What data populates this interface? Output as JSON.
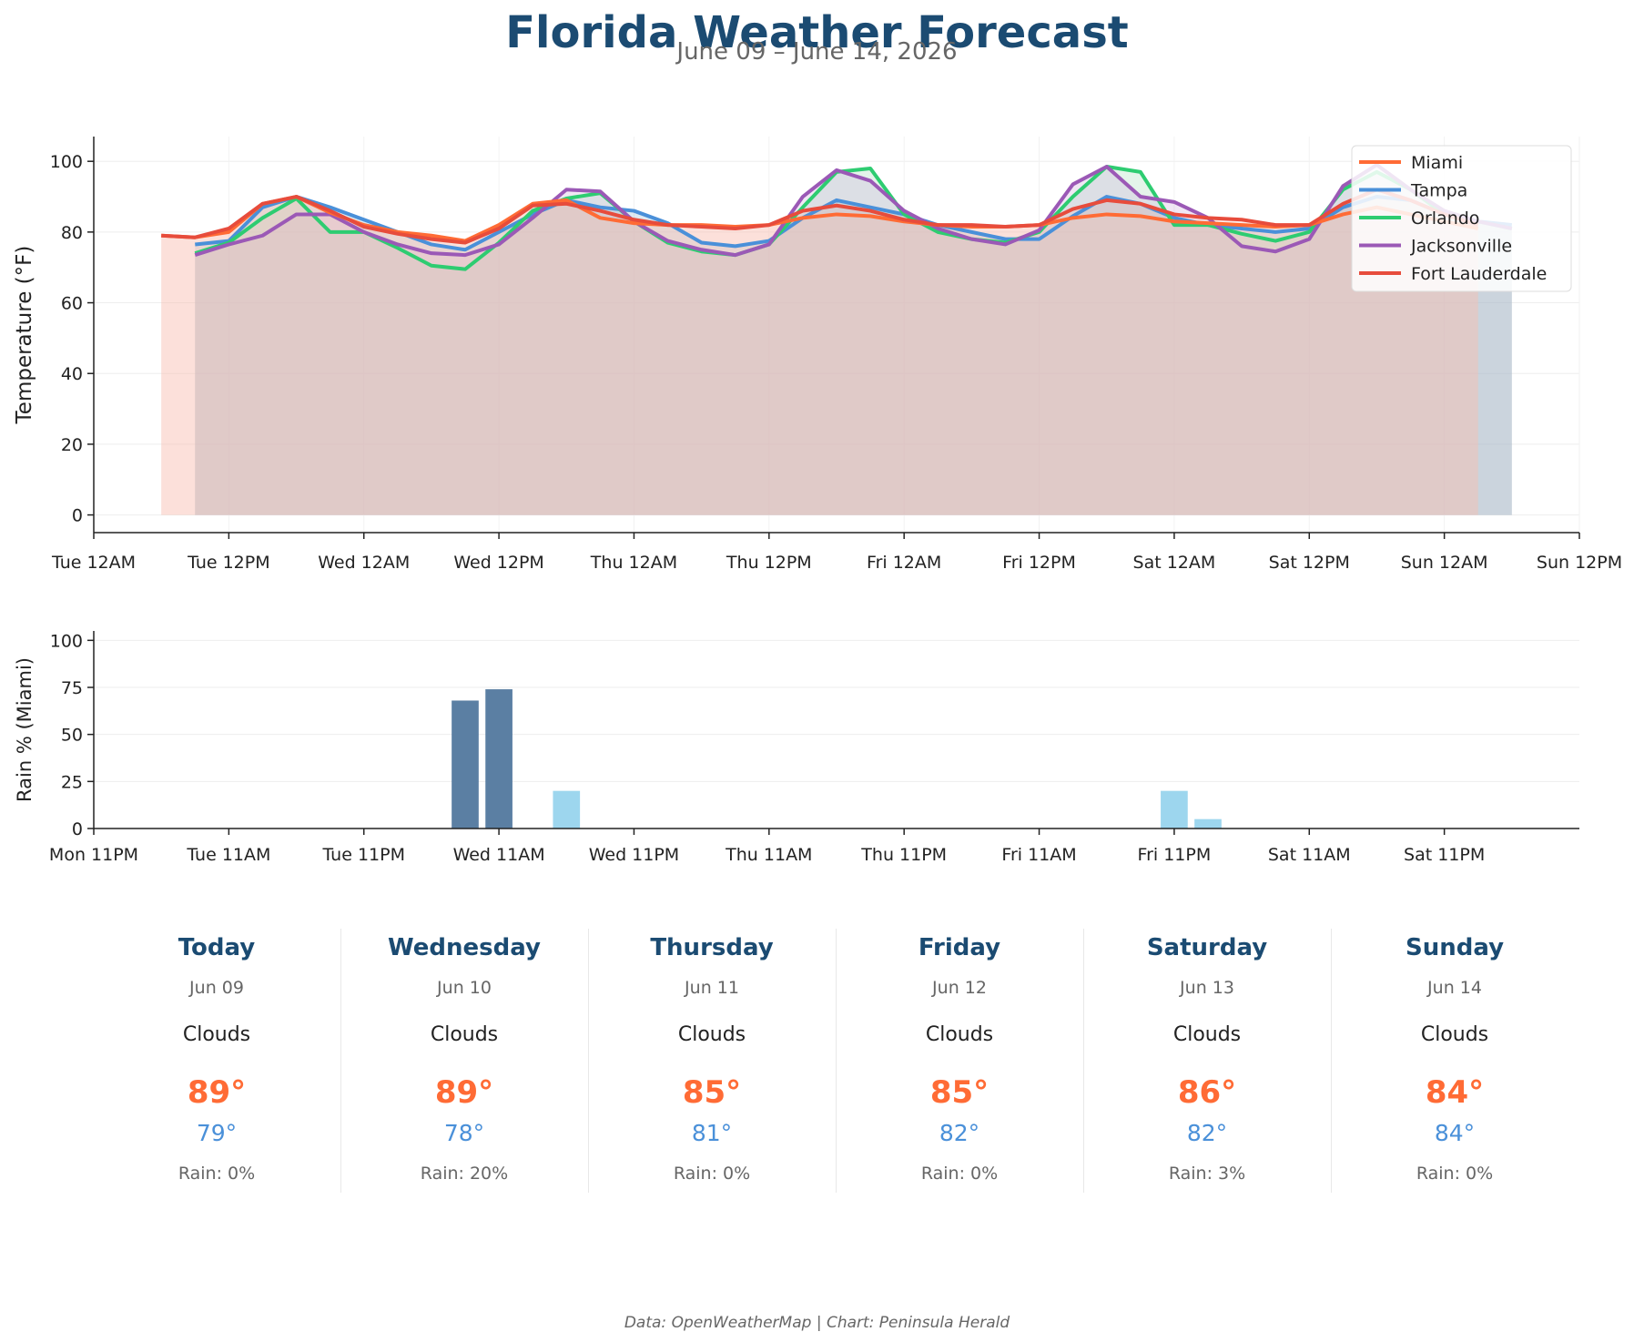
{
  "header": {
    "title": "Florida Weather Forecast",
    "subtitle": "June 09 – June 14, 2026"
  },
  "chart_data": [
    {
      "type": "line",
      "ylabel": "Temperature (°F)",
      "ylim": [
        -5,
        107
      ],
      "yticks": [
        0,
        20,
        40,
        60,
        80,
        100
      ],
      "x_start": "2026-06-09 00:00",
      "xlim_hours": [
        0,
        132
      ],
      "xticks": [
        {
          "hour": 0,
          "label": "Tue 12AM"
        },
        {
          "hour": 12,
          "label": "Tue 12PM"
        },
        {
          "hour": 24,
          "label": "Wed 12AM"
        },
        {
          "hour": 36,
          "label": "Wed 12PM"
        },
        {
          "hour": 48,
          "label": "Thu 12AM"
        },
        {
          "hour": 60,
          "label": "Thu 12PM"
        },
        {
          "hour": 72,
          "label": "Fri 12AM"
        },
        {
          "hour": 84,
          "label": "Fri 12PM"
        },
        {
          "hour": 96,
          "label": "Sat 12AM"
        },
        {
          "hour": 108,
          "label": "Sat 12PM"
        },
        {
          "hour": 120,
          "label": "Sun 12AM"
        },
        {
          "hour": 132,
          "label": "Sun 12PM"
        }
      ],
      "grid": true,
      "legend_position": "top-right",
      "series": [
        {
          "name": "Tampa",
          "color": "#4a90d9",
          "fill": "#8ab4d0",
          "x": [
            9,
            12,
            15,
            18,
            21,
            24,
            27,
            30,
            33,
            36,
            39,
            42,
            45,
            48,
            51,
            54,
            57,
            60,
            63,
            66,
            69,
            72,
            75,
            78,
            81,
            84,
            87,
            90,
            93,
            96,
            99,
            102,
            105,
            108,
            111,
            114,
            117,
            120,
            123,
            126
          ],
          "y": [
            76.5,
            77.5,
            87,
            90,
            87,
            83.5,
            80,
            76.5,
            75,
            80,
            85,
            89,
            87,
            86,
            82.5,
            77,
            76,
            77.5,
            84,
            89,
            87,
            85,
            82,
            80,
            78,
            78,
            84.5,
            90,
            88,
            84,
            82,
            81,
            80,
            81,
            87,
            90,
            89,
            85,
            83,
            82
          ]
        },
        {
          "name": "Orlando",
          "color": "#2ecc71",
          "fill": "#9fd8b4",
          "x": [
            9,
            12,
            15,
            18,
            21,
            24,
            27,
            30,
            33,
            36,
            39,
            42,
            45,
            48,
            51,
            54,
            57,
            60,
            63,
            66,
            69,
            72,
            75,
            78,
            81,
            84,
            87,
            90,
            93,
            96,
            99,
            102,
            105,
            108,
            111,
            114,
            117,
            120,
            123,
            126
          ],
          "y": [
            74,
            77,
            84,
            89.5,
            80,
            80,
            75.5,
            70.5,
            69.5,
            77,
            86,
            89.5,
            91,
            83,
            77,
            74.5,
            73.5,
            76.5,
            87,
            97,
            98,
            85,
            80,
            78,
            77,
            80,
            90,
            98.5,
            97,
            82,
            82,
            79.5,
            77.5,
            80,
            92,
            97,
            92,
            85,
            83,
            81
          ]
        },
        {
          "name": "Jacksonville",
          "color": "#9b59b6",
          "fill": "#c9a8d8",
          "x": [
            9,
            12,
            15,
            18,
            21,
            24,
            27,
            30,
            33,
            36,
            39,
            42,
            45,
            48,
            51,
            54,
            57,
            60,
            63,
            66,
            69,
            72,
            75,
            78,
            81,
            84,
            87,
            90,
            93,
            96,
            99,
            102,
            105,
            108,
            111,
            114,
            117,
            120,
            123,
            126
          ],
          "y": [
            73.5,
            76.5,
            79,
            85,
            85,
            80,
            76.5,
            74,
            73.5,
            76.5,
            84,
            92,
            91.5,
            83,
            77.5,
            75,
            73.5,
            76.5,
            90,
            97.5,
            94.5,
            86,
            81,
            78,
            76.5,
            80.5,
            93.5,
            98.5,
            90,
            88.5,
            84,
            76,
            74.5,
            78,
            93,
            99,
            92,
            86,
            83,
            81
          ]
        },
        {
          "name": "Miami",
          "color": "#ff6b35",
          "fill": "#ffc9b5",
          "x": [
            6,
            9,
            12,
            15,
            18,
            21,
            24,
            27,
            30,
            33,
            36,
            39,
            42,
            45,
            48,
            51,
            54,
            57,
            60,
            63,
            66,
            69,
            72,
            75,
            78,
            81,
            84,
            87,
            90,
            93,
            96,
            99,
            102,
            105,
            108,
            111,
            114,
            117,
            120,
            123
          ],
          "y": [
            79,
            78.5,
            80,
            88,
            90,
            85.5,
            82,
            80,
            79,
            77.5,
            82,
            88,
            89,
            84,
            82.5,
            82,
            82,
            81.5,
            82,
            84,
            85,
            84.5,
            83,
            82,
            81.5,
            81.5,
            82,
            84,
            85,
            84.5,
            83,
            82.5,
            82,
            81.5,
            82,
            85,
            87,
            85,
            83,
            81
          ]
        },
        {
          "name": "Fort Lauderdale",
          "color": "#e74c3c",
          "fill": "#f5b7b1",
          "x": [
            6,
            9,
            12,
            15,
            18,
            21,
            24,
            27,
            30,
            33,
            36,
            39,
            42,
            45,
            48,
            51,
            54,
            57,
            60,
            63,
            66,
            69,
            72,
            75,
            78,
            81,
            84,
            87,
            90,
            93,
            96,
            99,
            102,
            105,
            108,
            111,
            114,
            117,
            120,
            123
          ],
          "y": [
            79,
            78.5,
            81,
            88,
            90,
            86,
            81.5,
            79.5,
            78,
            77,
            81,
            87.5,
            88,
            86,
            83.5,
            82,
            81.5,
            81,
            82,
            86,
            87.5,
            86,
            83.5,
            82,
            82,
            81.5,
            82,
            86.5,
            89,
            88,
            85,
            84,
            83.5,
            82,
            82,
            88,
            92,
            89,
            85,
            82
          ]
        }
      ]
    },
    {
      "type": "bar",
      "ylabel": "Rain % (Miami)",
      "ylim": [
        0,
        105
      ],
      "yticks": [
        0,
        25,
        50,
        75,
        100
      ],
      "x_start": "2026-06-08 23:00",
      "xlim_hours": [
        0,
        132
      ],
      "xticks": [
        {
          "hour": 0,
          "label": "Mon 11PM"
        },
        {
          "hour": 12,
          "label": "Tue 11AM"
        },
        {
          "hour": 24,
          "label": "Tue 11PM"
        },
        {
          "hour": 36,
          "label": "Wed 11AM"
        },
        {
          "hour": 48,
          "label": "Wed 11PM"
        },
        {
          "hour": 60,
          "label": "Thu 11AM"
        },
        {
          "hour": 72,
          "label": "Thu 11PM"
        },
        {
          "hour": 84,
          "label": "Fri 11AM"
        },
        {
          "hour": 96,
          "label": "Fri 11PM"
        },
        {
          "hour": 108,
          "label": "Sat 11AM"
        },
        {
          "hour": 120,
          "label": "Sat 11PM"
        }
      ],
      "grid": true,
      "bars": [
        {
          "hour": 33,
          "value": 68,
          "color": "#5b7fa3"
        },
        {
          "hour": 36,
          "value": 74,
          "color": "#5b7fa3"
        },
        {
          "hour": 42,
          "value": 20,
          "color": "#9dd6ee"
        },
        {
          "hour": 96,
          "value": 20,
          "color": "#9dd6ee"
        },
        {
          "hour": 99,
          "value": 5,
          "color": "#9dd6ee"
        }
      ]
    }
  ],
  "forecast": [
    {
      "day": "Today",
      "date": "Jun 09",
      "condition": "Clouds",
      "high": "89°",
      "low": "79°",
      "rain": "Rain: 0%"
    },
    {
      "day": "Wednesday",
      "date": "Jun 10",
      "condition": "Clouds",
      "high": "89°",
      "low": "78°",
      "rain": "Rain: 20%"
    },
    {
      "day": "Thursday",
      "date": "Jun 11",
      "condition": "Clouds",
      "high": "85°",
      "low": "81°",
      "rain": "Rain: 0%"
    },
    {
      "day": "Friday",
      "date": "Jun 12",
      "condition": "Clouds",
      "high": "85°",
      "low": "82°",
      "rain": "Rain: 0%"
    },
    {
      "day": "Saturday",
      "date": "Jun 13",
      "condition": "Clouds",
      "high": "86°",
      "low": "82°",
      "rain": "Rain: 3%"
    },
    {
      "day": "Sunday",
      "date": "Jun 14",
      "condition": "Clouds",
      "high": "84°",
      "low": "84°",
      "rain": "Rain: 0%"
    }
  ],
  "footer": "Data: OpenWeatherMap | Chart: Peninsula Herald",
  "colors": {
    "accent": "#1b4b72",
    "high_temp": "#ff6b35",
    "low_temp": "#4a90d9"
  }
}
